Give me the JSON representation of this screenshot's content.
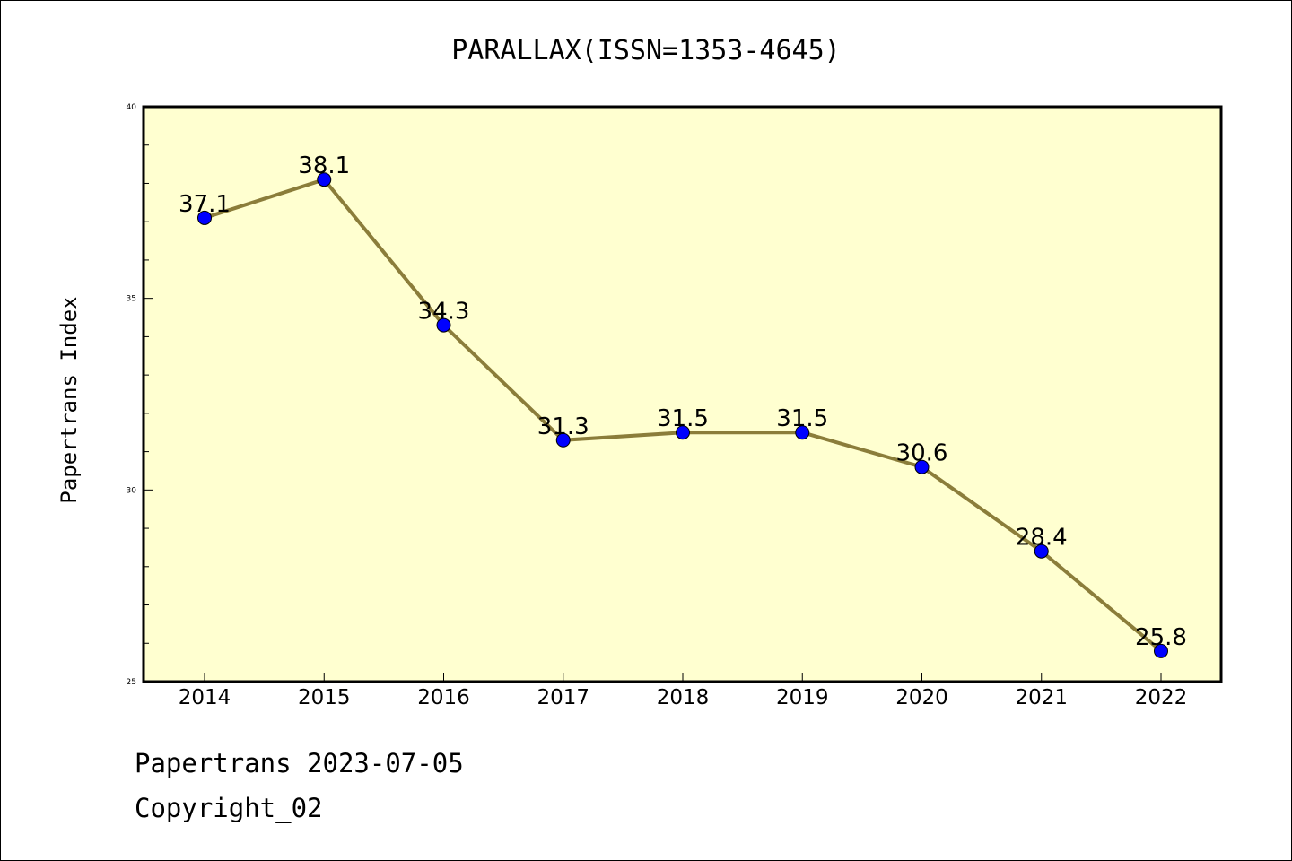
{
  "chart_data": {
    "type": "line",
    "title": "PARALLAX(ISSN=1353-4645)",
    "xlabel": "",
    "ylabel": "Papertrans Index",
    "categories": [
      "2014",
      "2015",
      "2016",
      "2017",
      "2018",
      "2019",
      "2020",
      "2021",
      "2022"
    ],
    "values": [
      37.1,
      38.1,
      34.3,
      31.3,
      31.5,
      31.5,
      30.6,
      28.4,
      25.8
    ],
    "data_labels": [
      "37.1",
      "38.1",
      "34.3",
      "31.3",
      "31.5",
      "31.5",
      "30.6",
      "28.4",
      "25.8"
    ],
    "ylim": [
      25,
      40
    ],
    "yticks": [
      "25",
      "30",
      "35",
      "40"
    ],
    "grid": false,
    "legend": "none",
    "colors": {
      "plot_background": "#ffffd0",
      "line": "#8b7d3a",
      "marker": "#0000ff"
    }
  },
  "footer": {
    "line1": "Papertrans 2023-07-05",
    "line2": "Copyright_02"
  }
}
